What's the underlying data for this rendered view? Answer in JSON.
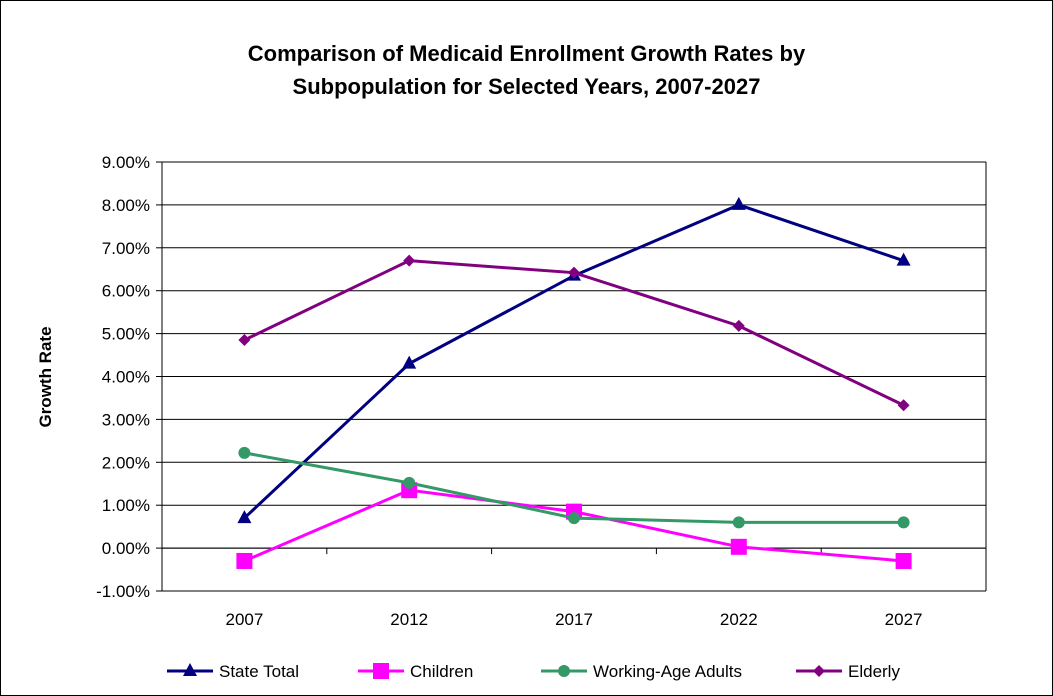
{
  "chart_data": {
    "type": "line",
    "title_lines": [
      "Comparison of Medicaid Enrollment Growth Rates by",
      "Subpopulation for Selected Years, 2007-2027"
    ],
    "ylabel": "Growth Rate",
    "xlabel": "",
    "categories": [
      "2007",
      "2012",
      "2017",
      "2022",
      "2027"
    ],
    "y_ticks": [
      "-1.00%",
      "0.00%",
      "1.00%",
      "2.00%",
      "3.00%",
      "4.00%",
      "5.00%",
      "6.00%",
      "7.00%",
      "8.00%",
      "9.00%"
    ],
    "ylim": [
      -1.0,
      9.0
    ],
    "y_unit": "%",
    "grid": "horizontal",
    "legend_position": "bottom",
    "series": [
      {
        "name": "State Total",
        "marker": "triangle",
        "color": "#000080",
        "values": [
          0.7,
          4.3,
          6.35,
          8.0,
          6.7
        ]
      },
      {
        "name": "Children",
        "marker": "square",
        "color": "#FF00FF",
        "values": [
          -0.3,
          1.35,
          0.85,
          0.03,
          -0.3
        ]
      },
      {
        "name": "Working-Age Adults",
        "marker": "circle",
        "color": "#339966",
        "values": [
          2.22,
          1.52,
          0.7,
          0.6,
          0.6
        ]
      },
      {
        "name": "Elderly",
        "marker": "diamond",
        "color": "#800080",
        "values": [
          4.85,
          6.7,
          6.42,
          5.18,
          3.33
        ]
      }
    ]
  }
}
